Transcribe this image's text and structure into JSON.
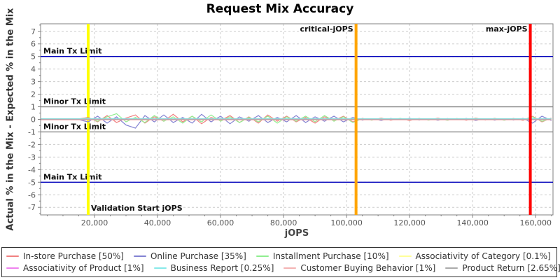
{
  "chart_data": {
    "type": "line",
    "title": "Request Mix Accuracy",
    "xlabel": "jOPS",
    "ylabel": "Actual % in the Mix - Expected % in the Mix",
    "xlim": [
      2900,
      165500
    ],
    "ylim": [
      -7.6,
      7.6
    ],
    "x_ticks": [
      20000,
      40000,
      60000,
      80000,
      100000,
      120000,
      140000,
      160000
    ],
    "y_ticks": [
      -7,
      -6,
      -5,
      -4,
      -3,
      -2,
      -1,
      0,
      1,
      2,
      3,
      4,
      5,
      6,
      7
    ],
    "grid": "dashed",
    "legend_position": "bottom",
    "x": [
      3000,
      6000,
      9000,
      12000,
      15000,
      18000,
      21000,
      24000,
      27000,
      30000,
      33000,
      36000,
      39000,
      42000,
      45000,
      48000,
      51000,
      54000,
      57000,
      60000,
      63000,
      66000,
      69000,
      72000,
      75000,
      78000,
      81000,
      84000,
      87000,
      90000,
      93000,
      96000,
      99000,
      102000,
      105000,
      108000,
      111000,
      114000,
      117000,
      120000,
      123000,
      126000,
      129000,
      132000,
      135000,
      138000,
      141000,
      144000,
      147000,
      150000,
      153000,
      156000,
      159000,
      162000,
      165000
    ],
    "series": [
      {
        "name": "In-store Purchase [50%]",
        "color": "#f08080",
        "y": [
          0.02,
          -0.03,
          0.05,
          -0.04,
          0.03,
          0.15,
          -0.2,
          0.3,
          -0.25,
          0.1,
          0.35,
          -0.3,
          0.2,
          -0.15,
          0.4,
          -0.2,
          0.25,
          -0.35,
          0.15,
          -0.1,
          0.3,
          -0.25,
          0.2,
          -0.3,
          0.35,
          -0.15,
          0.25,
          -0.2,
          0.15,
          -0.3,
          0.2,
          -0.1,
          0.25,
          -0.2,
          0.08,
          -0.06,
          0.1,
          -0.08,
          0.05,
          -0.1,
          0.07,
          -0.05,
          0.09,
          -0.07,
          0.06,
          -0.08,
          0.1,
          -0.06,
          0.08,
          -0.05,
          0.07,
          -0.09,
          0.25,
          -0.2,
          0.1
        ]
      },
      {
        "name": "Online Purchase [35%]",
        "color": "#8282d2",
        "y": [
          -0.02,
          0.03,
          -0.04,
          0.05,
          -0.03,
          -0.2,
          0.25,
          -0.3,
          0.2,
          -0.45,
          -0.7,
          0.3,
          -0.2,
          0.35,
          -0.25,
          0.15,
          -0.3,
          0.4,
          -0.2,
          0.25,
          -0.35,
          0.2,
          -0.15,
          0.3,
          -0.25,
          0.15,
          -0.2,
          0.3,
          -0.25,
          0.2,
          -0.15,
          0.25,
          -0.2,
          0.15,
          -0.07,
          0.05,
          -0.09,
          0.07,
          -0.05,
          0.08,
          -0.06,
          0.04,
          -0.08,
          0.06,
          -0.05,
          0.07,
          -0.09,
          0.05,
          -0.07,
          0.04,
          -0.06,
          0.08,
          -0.3,
          0.25,
          -0.1
        ]
      },
      {
        "name": "Installment Purchase [10%]",
        "color": "#90ee90",
        "y": [
          0.01,
          -0.02,
          0.03,
          -0.03,
          0.02,
          0.1,
          -0.15,
          0.2,
          0.45,
          -0.2,
          0.15,
          -0.25,
          0.3,
          -0.15,
          0.2,
          -0.3,
          0.25,
          -0.2,
          0.35,
          -0.15,
          0.2,
          -0.25,
          0.15,
          -0.2,
          0.25,
          -0.3,
          0.2,
          -0.15,
          0.25,
          -0.2,
          0.3,
          -0.15,
          0.2,
          -0.25,
          0.05,
          -0.07,
          0.06,
          -0.04,
          0.08,
          -0.06,
          0.05,
          -0.07,
          0.04,
          -0.08,
          0.06,
          -0.05,
          0.07,
          -0.04,
          0.06,
          -0.08,
          0.05,
          -0.06,
          0.2,
          -0.15,
          0.05
        ]
      },
      {
        "name": "Associativity of Category [0.1%]",
        "color": "#ffff99",
        "y": 0.03
      },
      {
        "name": "Associativity of Product [1%]",
        "color": "#ee82ee",
        "y": -0.03
      },
      {
        "name": "Business Report [0.25%]",
        "color": "#87e9e9",
        "y": 0.05
      },
      {
        "name": "Customer Buying Behavior [1%]",
        "color": "#f4b3b3",
        "y": -0.05
      },
      {
        "name": "Product Return [2.65%]",
        "color": "#aaaaaa",
        "y": 0.01
      }
    ],
    "hlines": [
      {
        "y": 5,
        "color": "#0000bb",
        "label": "Main Tx Limit"
      },
      {
        "y": 1,
        "color": "#888888",
        "label": "Minor Tx Limit"
      },
      {
        "y": -1,
        "color": "#888888",
        "label": "Minor Tx Limit"
      },
      {
        "y": -5,
        "color": "#0000bb",
        "label": "Main Tx Limit"
      }
    ],
    "vlines": [
      {
        "x": 18000,
        "color": "#ffff00",
        "label": "Validation Start jOPS",
        "label_pos": "bottom-right"
      },
      {
        "x": 103000,
        "color": "#ffa500",
        "label": "critical-jOPS",
        "label_pos": "top-left"
      },
      {
        "x": 158300,
        "color": "#ff0000",
        "label": "max-jOPS",
        "label_pos": "top-left"
      }
    ],
    "colors": {
      "plot_border": "#808080",
      "grid": "#cccccc",
      "tick_label": "#555555",
      "annotation_label": "#111111",
      "background": "#ffffff"
    }
  }
}
